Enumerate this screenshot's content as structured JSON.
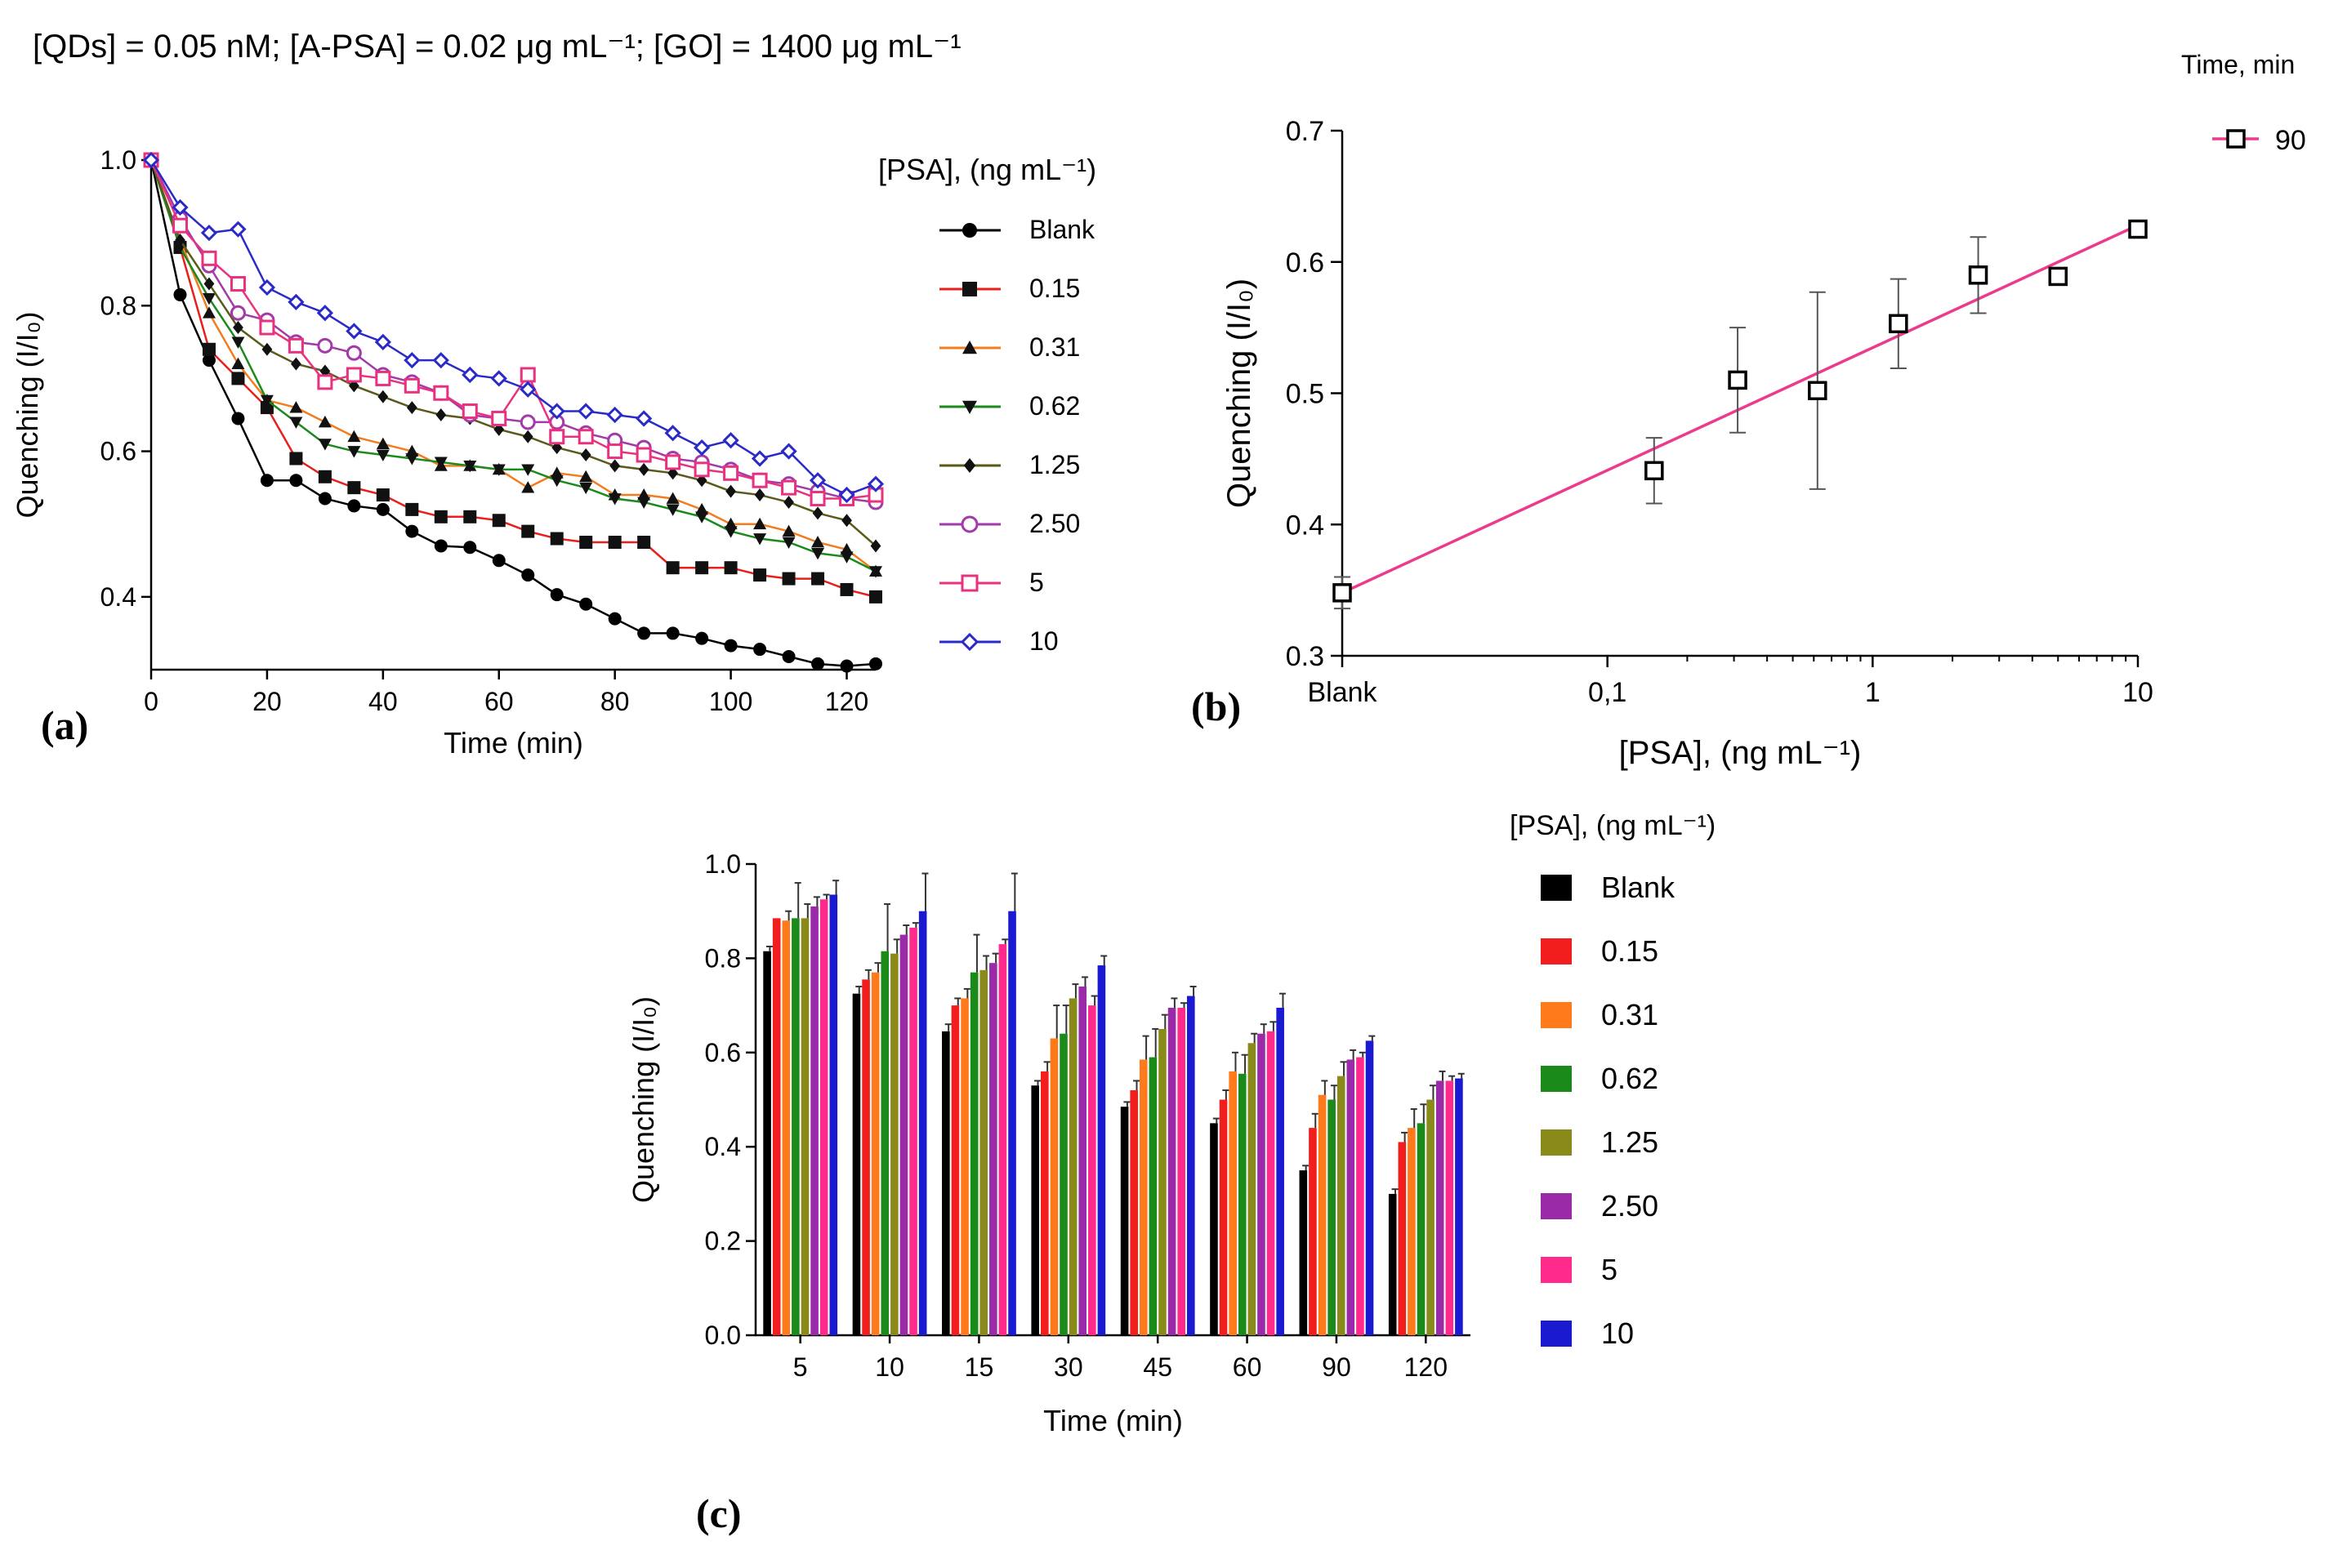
{
  "header": {
    "text": "[QDs] = 0.05 nM; [A-PSA] = 0.02  μg mL⁻¹; [GO] = 1400 μg mL⁻¹"
  },
  "colors": {
    "blank": "#000000",
    "s015": "#e8201c",
    "s031": "#f27c1e",
    "s062": "#1b8a1c",
    "s125": "#8a8a1e",
    "s250": "#a23aa8",
    "s5": "#e8327f",
    "s10": "#2a2ac8",
    "fit_line": "#ec3a8c"
  },
  "chart_data": [
    {
      "id": "a",
      "type": "line",
      "panel_label": "(a)",
      "xlabel": "Time (min)",
      "ylabel": "Quenching (I/I₀)",
      "xlim": [
        0,
        125
      ],
      "ylim": [
        0.3,
        1.0
      ],
      "xticks": [
        0,
        20,
        40,
        60,
        80,
        100,
        120
      ],
      "yticks": [
        0.4,
        0.6,
        0.8,
        1.0
      ],
      "ytick_labels": [
        "0.4",
        "0.6",
        "0.8",
        "1.0"
      ],
      "legend_title": "[PSA], (ng mL⁻¹)",
      "x": [
        0,
        5,
        10,
        15,
        20,
        25,
        30,
        35,
        40,
        45,
        50,
        55,
        60,
        65,
        70,
        75,
        80,
        85,
        90,
        95,
        100,
        105,
        110,
        115,
        120,
        125
      ],
      "series": [
        {
          "name": "Blank",
          "marker": "circle",
          "color": "#000000",
          "values": [
            1.0,
            0.815,
            0.725,
            0.645,
            0.56,
            0.56,
            0.535,
            0.525,
            0.52,
            0.49,
            0.47,
            0.468,
            0.45,
            0.43,
            0.403,
            0.39,
            0.37,
            0.35,
            0.35,
            0.343,
            0.333,
            0.328,
            0.318,
            0.308,
            0.305,
            0.308
          ]
        },
        {
          "name": "0.15",
          "marker": "square",
          "color": "#e8201c",
          "values": [
            1.0,
            0.88,
            0.74,
            0.7,
            0.66,
            0.59,
            0.565,
            0.55,
            0.54,
            0.52,
            0.51,
            0.51,
            0.505,
            0.49,
            0.48,
            0.475,
            0.475,
            0.475,
            0.44,
            0.44,
            0.44,
            0.43,
            0.425,
            0.425,
            0.41,
            0.4
          ]
        },
        {
          "name": "0.31",
          "marker": "triangle",
          "color": "#f27c1e",
          "values": [
            1.0,
            0.89,
            0.79,
            0.72,
            0.67,
            0.66,
            0.64,
            0.62,
            0.61,
            0.6,
            0.58,
            0.58,
            0.575,
            0.55,
            0.57,
            0.565,
            0.54,
            0.54,
            0.535,
            0.52,
            0.5,
            0.5,
            0.49,
            0.475,
            0.465,
            0.435
          ]
        },
        {
          "name": "0.62",
          "marker": "triangle-down",
          "color": "#1b8a1c",
          "values": [
            1.0,
            0.88,
            0.81,
            0.75,
            0.67,
            0.64,
            0.61,
            0.6,
            0.595,
            0.59,
            0.585,
            0.58,
            0.575,
            0.575,
            0.56,
            0.55,
            0.535,
            0.53,
            0.52,
            0.51,
            0.49,
            0.48,
            0.475,
            0.46,
            0.455,
            0.435
          ]
        },
        {
          "name": "1.25",
          "marker": "diamond-small",
          "color": "#5a5a1a",
          "values": [
            1.0,
            0.89,
            0.83,
            0.77,
            0.74,
            0.72,
            0.71,
            0.69,
            0.675,
            0.66,
            0.65,
            0.645,
            0.63,
            0.62,
            0.605,
            0.595,
            0.58,
            0.575,
            0.57,
            0.56,
            0.545,
            0.54,
            0.53,
            0.515,
            0.505,
            0.47
          ]
        },
        {
          "name": "2.50",
          "marker": "circle-open",
          "color": "#a23aa8",
          "values": [
            1.0,
            0.92,
            0.855,
            0.79,
            0.78,
            0.75,
            0.745,
            0.735,
            0.705,
            0.695,
            0.68,
            0.65,
            0.645,
            0.64,
            0.64,
            0.625,
            0.615,
            0.605,
            0.59,
            0.585,
            0.575,
            0.56,
            0.555,
            0.545,
            0.535,
            0.53
          ]
        },
        {
          "name": "5",
          "marker": "square-open",
          "color": "#e8327f",
          "values": [
            1.0,
            0.91,
            0.865,
            0.83,
            0.77,
            0.745,
            0.695,
            0.705,
            0.7,
            0.69,
            0.68,
            0.655,
            0.645,
            0.705,
            0.62,
            0.62,
            0.6,
            0.595,
            0.585,
            0.575,
            0.57,
            0.56,
            0.55,
            0.535,
            0.535,
            0.54
          ]
        },
        {
          "name": "10",
          "marker": "diamond-open",
          "color": "#2a2ac8",
          "values": [
            1.0,
            0.935,
            0.9,
            0.905,
            0.825,
            0.805,
            0.79,
            0.765,
            0.75,
            0.725,
            0.725,
            0.705,
            0.7,
            0.685,
            0.655,
            0.655,
            0.65,
            0.645,
            0.625,
            0.605,
            0.615,
            0.59,
            0.6,
            0.56,
            0.54,
            0.555
          ]
        }
      ]
    },
    {
      "id": "b",
      "type": "scatter",
      "panel_label": "(b)",
      "xlabel": "[PSA], (ng mL⁻¹)",
      "ylabel": "Quenching (I/I₀)",
      "xscale": "log",
      "xlim_log10": [
        -2,
        1
      ],
      "xticks": [
        "Blank",
        "0,1",
        "1",
        "10"
      ],
      "ylim": [
        0.3,
        0.7
      ],
      "yticks": [
        0.3,
        0.4,
        0.5,
        0.6,
        0.7
      ],
      "ytick_labels": [
        "0.3",
        "0.4",
        "0.5",
        "0.6",
        "0.7"
      ],
      "legend_title": "Time, min",
      "legend_entry": "90",
      "points": [
        {
          "x_log10": -2.0,
          "y": 0.348,
          "err": 0.012
        },
        {
          "x_log10": -0.824,
          "y": 0.441,
          "err": 0.025
        },
        {
          "x_log10": -0.509,
          "y": 0.51,
          "err": 0.04
        },
        {
          "x_log10": -0.208,
          "y": 0.502,
          "err": 0.075
        },
        {
          "x_log10": 0.097,
          "y": 0.553,
          "err": 0.034
        },
        {
          "x_log10": 0.398,
          "y": 0.59,
          "err": 0.029
        },
        {
          "x_log10": 0.699,
          "y": 0.589,
          "err": 0
        },
        {
          "x_log10": 1.0,
          "y": 0.625,
          "err": 0
        }
      ],
      "fit": {
        "x_log10": [
          -2.0,
          1.0
        ],
        "y": [
          0.348,
          0.628
        ]
      }
    },
    {
      "id": "c",
      "type": "bar",
      "panel_label": "(c)",
      "xlabel": "Time (min)",
      "ylabel": "Quenching (I/I₀)",
      "ylim": [
        0,
        1.0
      ],
      "yticks": [
        0.0,
        0.2,
        0.4,
        0.6,
        0.8,
        1.0
      ],
      "ytick_labels": [
        "0.0",
        "0.2",
        "0.4",
        "0.6",
        "0.8",
        "1.0"
      ],
      "categories": [
        "5",
        "10",
        "15",
        "30",
        "45",
        "60",
        "90",
        "120"
      ],
      "legend_title": "[PSA], (ng mL⁻¹)",
      "series": [
        {
          "name": "Blank",
          "color": "#000000",
          "values": [
            0.815,
            0.725,
            0.645,
            0.53,
            0.485,
            0.45,
            0.35,
            0.3
          ],
          "errors": [
            0.01,
            0.015,
            0.015,
            0.01,
            0.01,
            0.01,
            0.01,
            0.01
          ]
        },
        {
          "name": "0.15",
          "color": "#f21e1e",
          "values": [
            0.885,
            0.755,
            0.7,
            0.56,
            0.52,
            0.5,
            0.44,
            0.41
          ],
          "errors": [
            0.0,
            0.02,
            0.015,
            0.02,
            0.02,
            0.02,
            0.03,
            0.02
          ]
        },
        {
          "name": "0.31",
          "color": "#ff7a1a",
          "values": [
            0.88,
            0.77,
            0.715,
            0.63,
            0.585,
            0.56,
            0.51,
            0.44
          ],
          "errors": [
            0.02,
            0.02,
            0.02,
            0.07,
            0.05,
            0.04,
            0.03,
            0.04
          ]
        },
        {
          "name": "0.62",
          "color": "#1a8a1a",
          "values": [
            0.885,
            0.815,
            0.77,
            0.64,
            0.59,
            0.555,
            0.5,
            0.45
          ],
          "errors": [
            0.075,
            0.1,
            0.08,
            0.06,
            0.06,
            0.04,
            0.03,
            0.04
          ]
        },
        {
          "name": "1.25",
          "color": "#8a8a1a",
          "values": [
            0.885,
            0.81,
            0.775,
            0.715,
            0.65,
            0.62,
            0.55,
            0.5
          ],
          "errors": [
            0.03,
            0.03,
            0.03,
            0.03,
            0.03,
            0.02,
            0.03,
            0.03
          ]
        },
        {
          "name": "2.50",
          "color": "#9a2aa8",
          "values": [
            0.91,
            0.85,
            0.79,
            0.74,
            0.695,
            0.64,
            0.585,
            0.54
          ],
          "errors": [
            0.02,
            0.02,
            0.02,
            0.02,
            0.02,
            0.02,
            0.02,
            0.02
          ]
        },
        {
          "name": "5",
          "color": "#ff2a8c",
          "values": [
            0.925,
            0.865,
            0.83,
            0.7,
            0.695,
            0.645,
            0.59,
            0.54
          ],
          "errors": [
            0.01,
            0.01,
            0.01,
            0.02,
            0.01,
            0.02,
            0.01,
            0.01
          ]
        },
        {
          "name": "10",
          "color": "#1a1ad0",
          "values": [
            0.935,
            0.9,
            0.9,
            0.785,
            0.72,
            0.695,
            0.625,
            0.545
          ],
          "errors": [
            0.03,
            0.08,
            0.08,
            0.02,
            0.02,
            0.03,
            0.01,
            0.01
          ]
        }
      ]
    }
  ]
}
